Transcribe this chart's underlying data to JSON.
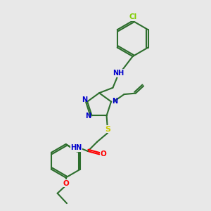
{
  "bg_color": "#e8e8e8",
  "bond_color": "#2d6e2d",
  "atom_colors": {
    "N": "#0000cc",
    "O": "#ff0000",
    "S": "#cccc00",
    "Cl": "#7fcc00",
    "C": "#2d6e2d"
  },
  "figsize": [
    3.0,
    3.0
  ],
  "dpi": 100,
  "xlim": [
    0,
    10
  ],
  "ylim": [
    0,
    10
  ]
}
